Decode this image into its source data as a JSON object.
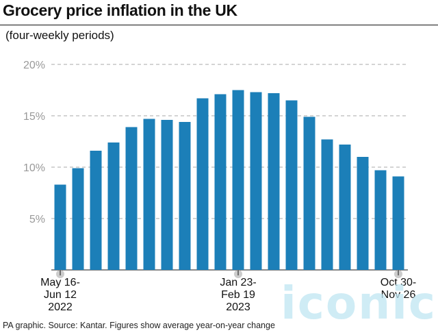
{
  "header": {
    "title": "Grocery price inflation in the UK",
    "subtitle": "(four-weekly periods)"
  },
  "footer": {
    "source": "PA graphic. Source: Kantar. Figures show average year-on-year change"
  },
  "watermark": {
    "text": "iconic"
  },
  "colors": {
    "bar": "#1c7fb8",
    "grid": "#aaaaaa",
    "tick_text": "#999999",
    "marker": "#cccccc"
  },
  "chart_data": {
    "type": "bar",
    "title": "Grocery price inflation in the UK",
    "subtitle": "(four-weekly periods)",
    "xlabel": "",
    "ylabel": "",
    "ylim": [
      0,
      20
    ],
    "yticks": [
      5,
      10,
      15,
      20
    ],
    "ytick_labels": [
      "5%",
      "10%",
      "15%",
      "20%"
    ],
    "grid": true,
    "values": [
      8.3,
      9.9,
      11.6,
      12.4,
      13.9,
      14.7,
      14.6,
      14.4,
      16.7,
      17.1,
      17.5,
      17.3,
      17.2,
      16.5,
      14.9,
      12.7,
      12.2,
      11.0,
      9.7,
      9.1
    ],
    "x_labels": [
      {
        "index": 0,
        "lines": [
          "May 16-",
          "Jun 12",
          "2022"
        ]
      },
      {
        "index": 10,
        "lines": [
          "Jan 23-",
          "Feb 19",
          "2023"
        ]
      },
      {
        "index": 19,
        "lines": [
          "Oct 30-",
          "Nov 26"
        ]
      }
    ]
  }
}
